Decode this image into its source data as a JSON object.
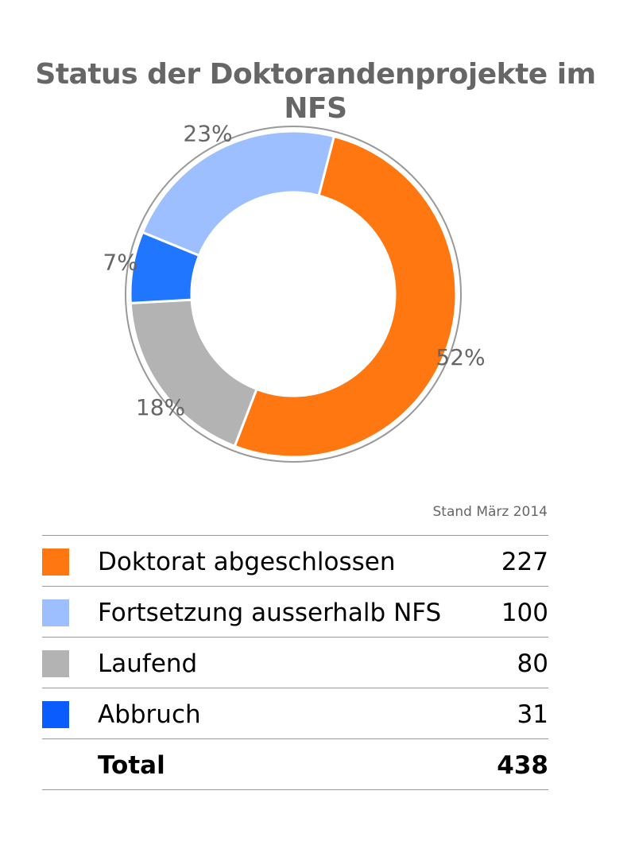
{
  "chart_data": {
    "type": "pie",
    "title": "Status der Doktorandenprojekte im NFS",
    "subtitle": "Stand März 2014",
    "slices": [
      {
        "name": "Doktorat abgeschlossen",
        "value": 227,
        "percent_label": "52%",
        "color": "#ff7710"
      },
      {
        "name": "Laufend",
        "value": 80,
        "percent_label": "18%",
        "color": "#b3b3b3"
      },
      {
        "name": "Abbruch",
        "value": 31,
        "percent_label": "7%",
        "color": "#2176ff"
      },
      {
        "name": "Fortsetzung ausserhalb NFS",
        "value": 100,
        "percent_label": "23%",
        "color": "#9dbfff"
      }
    ],
    "legend": [
      {
        "name": "Doktorat abgeschlossen",
        "value": "227",
        "color": "#ff7710"
      },
      {
        "name": "Fortsetzung ausserhalb NFS",
        "value": "100",
        "color": "#9dbfff"
      },
      {
        "name": "Laufend",
        "value": "80",
        "color": "#b3b3b3"
      },
      {
        "name": "Abbruch",
        "value": "31",
        "color": "#0a5cff"
      }
    ],
    "total": {
      "label": "Total",
      "value": "438"
    }
  }
}
